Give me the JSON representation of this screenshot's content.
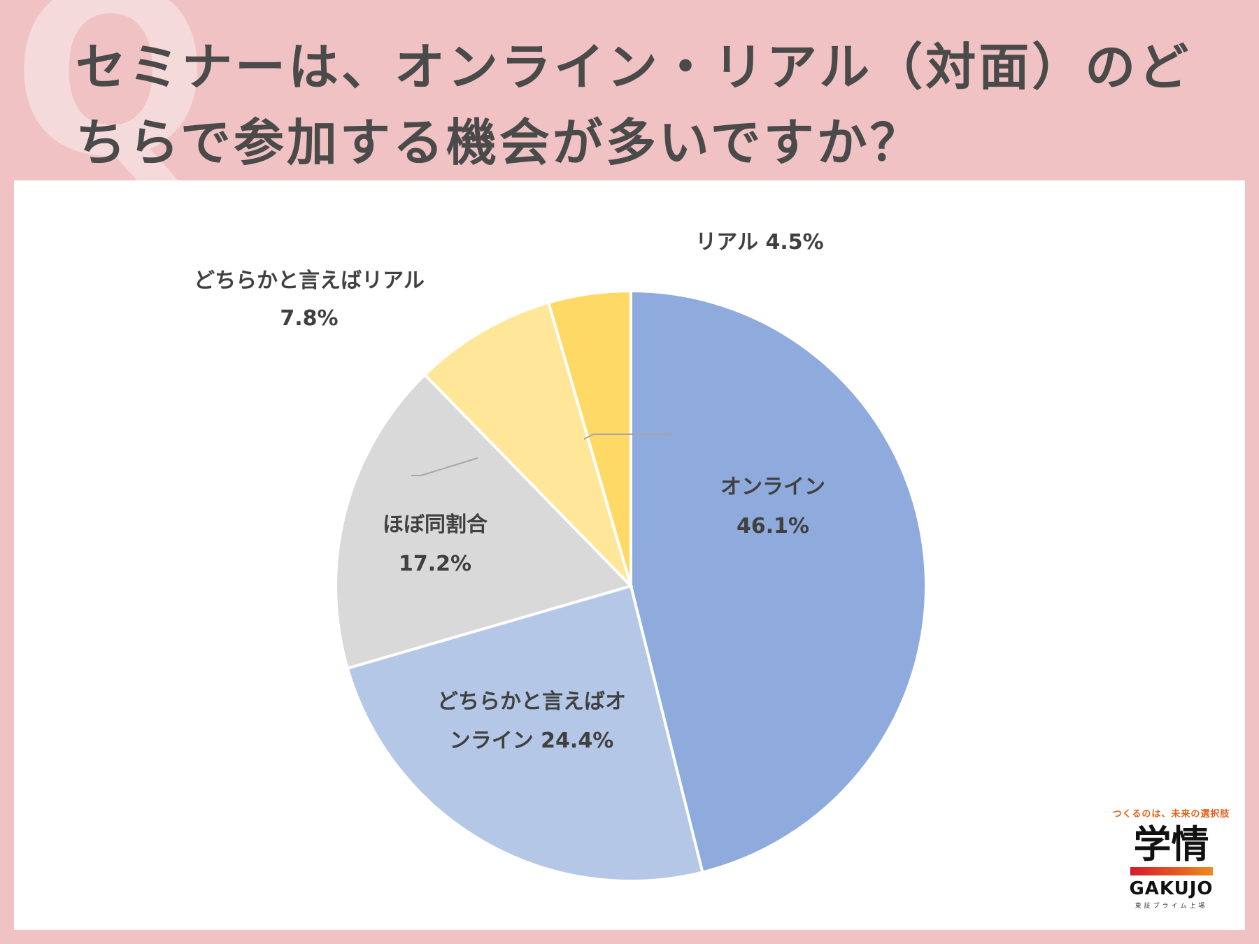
{
  "header": {
    "watermark": "Q",
    "title": "セミナーは、オンライン・リアル（対面）のど\nちらで参加する機会が多いですか？"
  },
  "chart_data": {
    "type": "pie",
    "title": "セミナーは、オンライン・リアル（対面）のどちらで参加する機会が多いですか？",
    "slices": [
      {
        "label": "オンライン",
        "value": 46.1,
        "color": "#8faadc"
      },
      {
        "label": "どちらかと言えばオンライン",
        "value": 24.4,
        "color": "#b4c7e7"
      },
      {
        "label": "ほぼ同割合",
        "value": 17.2,
        "color": "#d9d9d9"
      },
      {
        "label": "どちらかと言えばリアル",
        "value": 7.8,
        "color": "#ffe699"
      },
      {
        "label": "リアル",
        "value": 4.5,
        "color": "#ffd966"
      }
    ],
    "data_labels": [
      {
        "lines": [
          "オンライン",
          "46.1%"
        ]
      },
      {
        "lines": [
          "どちらかと言えばオ",
          "ンライン 24.4%"
        ]
      },
      {
        "lines": [
          "ほぼ同割合",
          "17.2%"
        ]
      },
      {
        "lines": [
          "どちらかと言えばリアル",
          "7.8%"
        ]
      },
      {
        "lines": [
          "リアル 4.5%"
        ]
      }
    ],
    "unit": "%"
  },
  "logo": {
    "tagline": "つくるのは、未来の選択肢",
    "kanji": "学情",
    "brand": "GAKUJO",
    "sub": "東証プライム上場"
  }
}
